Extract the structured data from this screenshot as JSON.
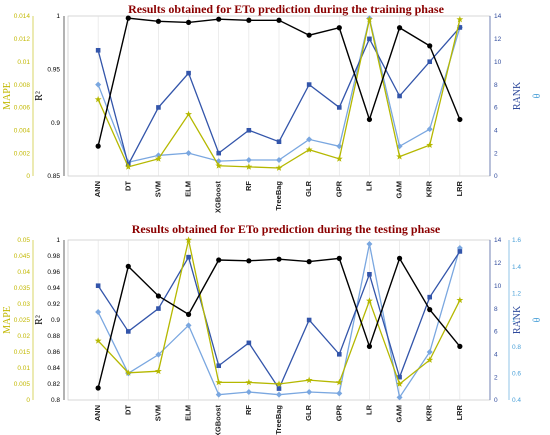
{
  "colors": {
    "r2": "#000000",
    "mape": "#b5b800",
    "rank": "#3355aa",
    "ri": "#7aa7e0",
    "rank_axis": "#2f4a9c",
    "mape_axis": "#c2b800",
    "ri_axis": "#4aa0d8",
    "title": "#8b0000",
    "grid": "#e0e0e0"
  },
  "chart_data": [
    {
      "type": "line",
      "title": "Results obtained for ETo prediction during the training phase",
      "categories": [
        "ANN",
        "DT",
        "SVM",
        "ELM",
        "XGBoost",
        "RF",
        "TreeBag",
        "GLR",
        "GPR",
        "LR",
        "GAM",
        "KRR",
        "LRR"
      ],
      "axes": {
        "mape": {
          "label": "MAPE",
          "ylim": [
            0,
            0.014
          ],
          "ticks": [
            "0",
            "0.002",
            "0.004",
            "0.006",
            "0.008",
            "0.01",
            "0.012",
            "0.014"
          ]
        },
        "r2": {
          "label": "R²",
          "ylim": [
            0.85,
            1.0
          ],
          "ticks": [
            "0.85",
            "0.9",
            "0.95",
            "1"
          ]
        },
        "rank": {
          "label": "RANK",
          "ylim": [
            0,
            14
          ],
          "ticks": [
            "0",
            "2",
            "4",
            "6",
            "8",
            "10",
            "12",
            "14"
          ]
        },
        "ri": {
          "label": "θ",
          "ylim": [
            0,
            14
          ],
          "ticks": []
        }
      },
      "series": [
        {
          "key": "r2",
          "axis": "r2",
          "marker": "circle",
          "values": [
            0.878,
            0.998,
            0.995,
            0.994,
            0.997,
            0.996,
            0.996,
            0.982,
            0.989,
            0.903,
            0.989,
            0.972,
            0.903
          ]
        },
        {
          "key": "mape",
          "axis": "mape",
          "marker": "star",
          "values": [
            0.0067,
            0.0008,
            0.0015,
            0.0054,
            0.0009,
            0.0008,
            0.0007,
            0.0023,
            0.0015,
            0.0137,
            0.0017,
            0.0027,
            0.0137
          ]
        },
        {
          "key": "rank",
          "axis": "rank",
          "marker": "square",
          "values": [
            11,
            1,
            6,
            9,
            2,
            4,
            3,
            8,
            6,
            12,
            7,
            10,
            13
          ]
        },
        {
          "key": "ri",
          "axis": "ri",
          "marker": "diamond",
          "values": [
            8,
            1.2,
            1.8,
            2,
            1.3,
            1.4,
            1.4,
            3.2,
            2.6,
            13.8,
            2.6,
            4.1,
            13
          ]
        }
      ]
    },
    {
      "type": "line",
      "title": "Results obtained for ETo prediction during the testing phase",
      "categories": [
        "ANN",
        "DT",
        "SVM",
        "ELM",
        "XGBoost",
        "RF",
        "TreeBag",
        "GLR",
        "GPR",
        "LR",
        "GAM",
        "KRR",
        "LRR"
      ],
      "axes": {
        "mape": {
          "label": "MAPE",
          "ylim": [
            0,
            0.05
          ],
          "ticks": [
            "0",
            "0.005",
            "0.01",
            "0.015",
            "0.02",
            "0.025",
            "0.03",
            "0.035",
            "0.04",
            "0.045",
            "0.05"
          ]
        },
        "r2": {
          "label": "R²",
          "ylim": [
            0.8,
            1.0
          ],
          "ticks": [
            "0.8",
            "0.82",
            "0.84",
            "0.86",
            "0.88",
            "0.9",
            "0.92",
            "0.94",
            "0.96",
            "0.98",
            "1"
          ]
        },
        "rank": {
          "label": "RANK",
          "ylim": [
            0,
            14
          ],
          "ticks": [
            "0",
            "2",
            "4",
            "6",
            "8",
            "10",
            "12",
            "14"
          ]
        },
        "ri": {
          "label": "θ",
          "ylim": [
            0.4,
            1.6
          ],
          "ticks": [
            "0.4",
            "0.6",
            "0.8",
            "1",
            "1.2",
            "1.4",
            "1.6"
          ]
        }
      },
      "series": [
        {
          "key": "r2",
          "axis": "r2",
          "marker": "circle",
          "values": [
            0.815,
            0.967,
            0.93,
            0.907,
            0.975,
            0.974,
            0.976,
            0.973,
            0.977,
            0.867,
            0.977,
            0.913,
            0.867
          ]
        },
        {
          "key": "mape",
          "axis": "mape",
          "marker": "star",
          "values": [
            0.0185,
            0.0085,
            0.009,
            0.05,
            0.0055,
            0.0055,
            0.005,
            0.0062,
            0.0055,
            0.031,
            0.005,
            0.0125,
            0.0312
          ]
        },
        {
          "key": "rank",
          "axis": "rank",
          "marker": "square",
          "values": [
            10,
            6,
            8,
            12.5,
            3,
            5,
            1,
            7,
            4,
            11,
            2,
            9,
            13
          ]
        },
        {
          "key": "ri",
          "axis": "ri",
          "marker": "diamond",
          "values": [
            1.06,
            0.6,
            0.74,
            0.96,
            0.44,
            0.46,
            0.44,
            0.46,
            0.45,
            1.57,
            0.42,
            0.76,
            1.54
          ]
        }
      ]
    }
  ]
}
